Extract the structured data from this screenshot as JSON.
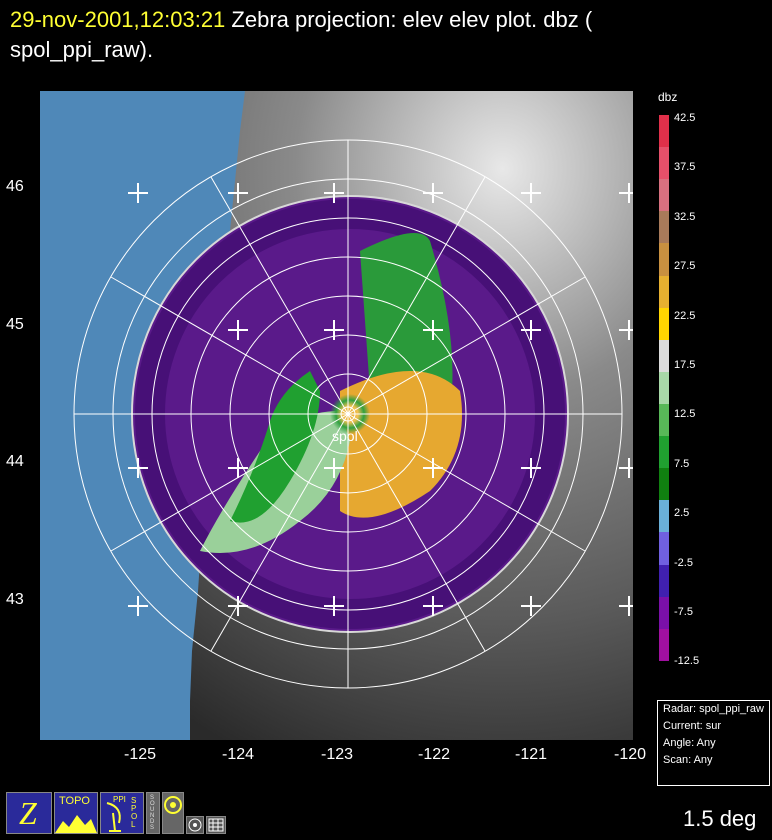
{
  "header": {
    "timestamp": "29-nov-2001,12:03:21",
    "title_rest": "  Zebra projection: elev elev  plot.  dbz (",
    "title_line2": "spol_ppi_raw)."
  },
  "map": {
    "lat_labels": [
      "46",
      "45",
      "44",
      "43"
    ],
    "lon_labels": [
      "-125",
      "-124",
      "-123",
      "-122",
      "-121",
      "-120"
    ],
    "radar_label": "spol"
  },
  "colorbar": {
    "title": "dbz",
    "labels": [
      "42.5",
      "37.5",
      "32.5",
      "27.5",
      "22.5",
      "17.5",
      "12.5",
      "7.5",
      "2.5",
      "-2.5",
      "-7.5",
      "-12.5"
    ],
    "colors": [
      "#e0304a",
      "#e6506a",
      "#d8707f",
      "#a87a5a",
      "#c89040",
      "#e6b030",
      "#ffd500",
      "#dcdcdc",
      "#a8d8a8",
      "#58b858",
      "#20a030",
      "#108010",
      "#6ab0d8",
      "#7060e0",
      "#4020b0",
      "#7a10a8",
      "#a010a0"
    ]
  },
  "info_box": {
    "radar": "Radar: spol_ppi_raw",
    "current": "Current: sur",
    "angle": "Angle: Any",
    "scan": "Scan: Any"
  },
  "status": {
    "angle": "1.5 deg"
  },
  "icons": {
    "zebra": "Z",
    "topo": "TOPO",
    "ppi": "PPI",
    "spol": "SPOL",
    "sounds": "SOUNDS"
  }
}
